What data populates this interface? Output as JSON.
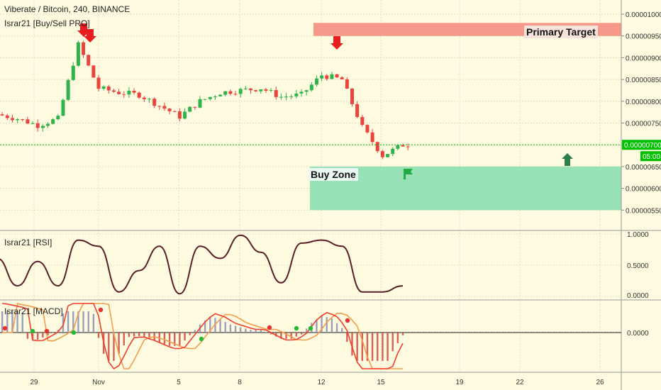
{
  "header": {
    "symbol_title": "Viberate / Bitcoin, 240, BINANCE",
    "indicator_main": "Israr21 [Buy/Sell PRO]",
    "indicator_rsi": "Israr21 [RSI]",
    "indicator_macd": "Israr21 [MACD]"
  },
  "annotations": {
    "primary_target": "Primary Target",
    "buy_zone": "Buy Zone"
  },
  "price_axis": {
    "ticks": [
      "0.00001000",
      "0.00000950",
      "0.00000900",
      "0.00000850",
      "0.00000800",
      "0.00000750",
      "0.00000700",
      "0.00000650",
      "0.00000600",
      "0.00000550"
    ],
    "current_price": "0.00000700",
    "countdown": "05:00"
  },
  "rsi_axis": {
    "ticks": [
      "1.0000",
      "0.5000",
      "0.0000"
    ]
  },
  "macd_axis": {
    "ticks": [
      "0.0000"
    ]
  },
  "time_axis": {
    "labels": [
      "29",
      "Nov",
      "5",
      "8",
      "12",
      "15",
      "19",
      "22",
      "26"
    ]
  },
  "colors": {
    "background": "#fffbe0",
    "up_candle": "#2fb34a",
    "down_candle": "#e8453c",
    "target_zone": "#f4877a",
    "buy_zone": "#86ddb0",
    "rsi_line": "#5a1e2a",
    "macd_line": "#ef3e2e",
    "signal_line": "#f39c4a",
    "current_price": "#00c000",
    "sell_arrow": "#e81e1e",
    "buy_flag": "#22aa44",
    "up_arrow": "#2e7d4a"
  },
  "chart_data": {
    "type": "candlestick",
    "title": "Viberate / Bitcoin, 240, BINANCE",
    "ylim": [
      5.2e-06,
      1.02e-05
    ],
    "primary_target_zone": [
      9.5e-06,
      9.8e-06
    ],
    "buy_zone": [
      5.5e-06,
      6.5e-06
    ],
    "current_price": 7e-06,
    "anchors": [
      [
        "Oct 27",
        7.7e-06
      ],
      [
        "Oct 28",
        7.6e-06
      ],
      [
        "Oct 29",
        7.45e-06
      ],
      [
        "Oct 30",
        7.6e-06
      ],
      [
        "Oct 31",
        9.3e-06
      ],
      [
        "Nov 1",
        8.3e-06
      ],
      [
        "Nov 2",
        8.2e-06
      ],
      [
        "Nov 3",
        8.15e-06
      ],
      [
        "Nov 4",
        7.9e-06
      ],
      [
        "Nov 5",
        7.65e-06
      ],
      [
        "Nov 6",
        8e-06
      ],
      [
        "Nov 7",
        8.2e-06
      ],
      [
        "Nov 8",
        8.25e-06
      ],
      [
        "Nov 9",
        8.3e-06
      ],
      [
        "Nov 10",
        8.1e-06
      ],
      [
        "Nov 11",
        8.15e-06
      ],
      [
        "Nov 12",
        8.6e-06
      ],
      [
        "Nov 13",
        8.5e-06
      ],
      [
        "Nov 14",
        7.4e-06
      ],
      [
        "Nov 15",
        6.75e-06
      ],
      [
        "Nov 16",
        7e-06
      ]
    ],
    "rsi": [
      [
        "Oct 27",
        0.6
      ],
      [
        "Oct 28",
        0.15
      ],
      [
        "Oct 29",
        0.55
      ],
      [
        "Oct 30",
        0.15
      ],
      [
        "Oct 31",
        0.9
      ],
      [
        "Nov 1",
        0.8
      ],
      [
        "Nov 2",
        0.05
      ],
      [
        "Nov 3",
        0.4
      ],
      [
        "Nov 4",
        0.8
      ],
      [
        "Nov 5",
        0.02
      ],
      [
        "Nov 6",
        0.8
      ],
      [
        "Nov 7",
        0.6
      ],
      [
        "Nov 8",
        0.98
      ],
      [
        "Nov 9",
        0.7
      ],
      [
        "Nov 10",
        0.2
      ],
      [
        "Nov 11",
        0.85
      ],
      [
        "Nov 12",
        0.9
      ],
      [
        "Nov 13",
        0.8
      ],
      [
        "Nov 14",
        0.05
      ],
      [
        "Nov 15",
        0.05
      ],
      [
        "Nov 16",
        0.15
      ]
    ],
    "macd_zero": 0.0
  }
}
